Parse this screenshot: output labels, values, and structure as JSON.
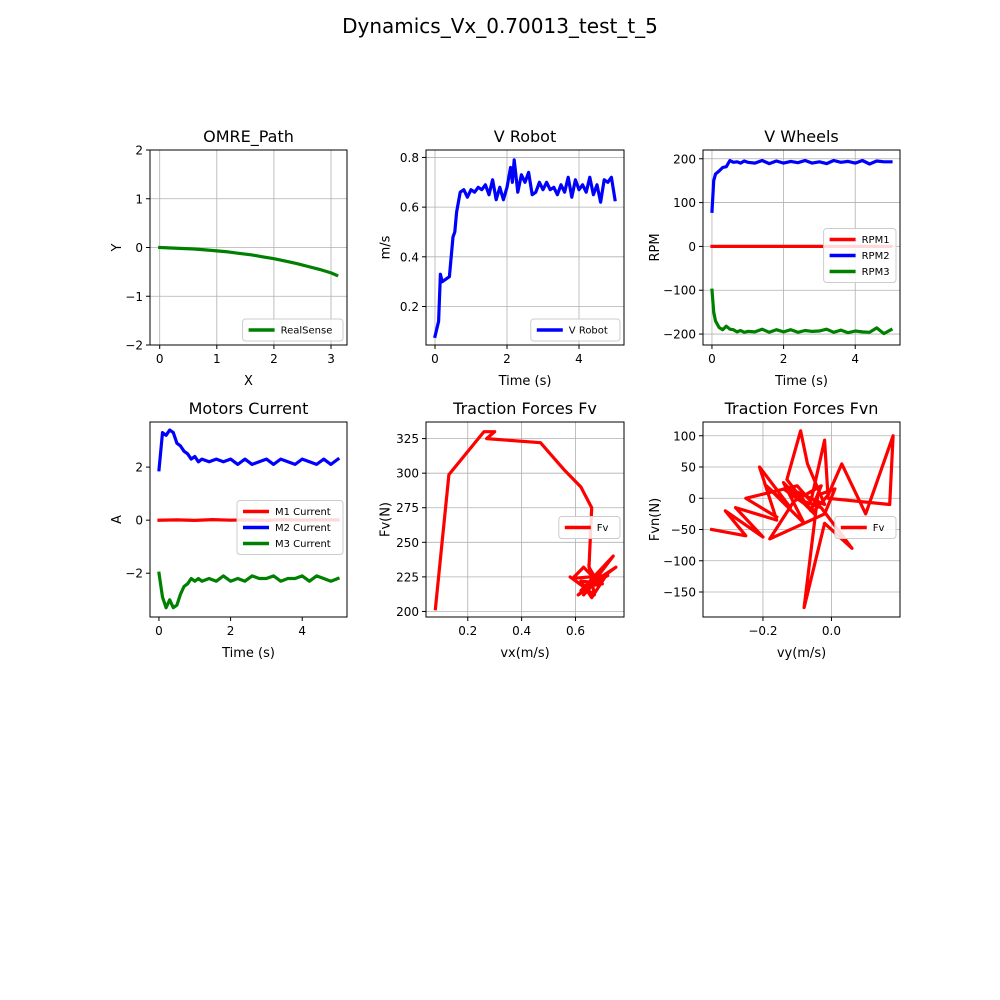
{
  "figure": {
    "title": "Dynamics_Vx_0.70013_test_t_5"
  },
  "chart_data": [
    {
      "id": "omre-path",
      "type": "line",
      "title": "OMRE_Path",
      "xlabel": "X",
      "ylabel": "Y",
      "xlim": [
        -0.17,
        3.28
      ],
      "ylim": [
        -2,
        2
      ],
      "xticks": [
        0,
        1,
        2,
        3
      ],
      "xticklabels": [
        "0",
        "1",
        "2",
        "3"
      ],
      "yticks": [
        -2,
        -1,
        0,
        1,
        2
      ],
      "yticklabels": [
        "−2",
        "−1",
        "0",
        "1",
        "2"
      ],
      "grid": true,
      "legend": "lower right",
      "series": [
        {
          "name": "RealSense",
          "color": "#008000",
          "x": [
            0,
            0.2,
            0.4,
            0.6,
            0.8,
            1.0,
            1.2,
            1.4,
            1.6,
            1.8,
            2.0,
            2.2,
            2.4,
            2.6,
            2.8,
            3.0,
            3.1
          ],
          "y": [
            0,
            -0.01,
            -0.02,
            -0.03,
            -0.05,
            -0.07,
            -0.09,
            -0.12,
            -0.15,
            -0.19,
            -0.23,
            -0.28,
            -0.33,
            -0.39,
            -0.45,
            -0.52,
            -0.57
          ]
        }
      ]
    },
    {
      "id": "v-robot",
      "type": "line",
      "title": "V Robot",
      "xlabel": "Time (s)",
      "ylabel": "m/s",
      "xlim": [
        -0.25,
        5.25
      ],
      "ylim": [
        0.045,
        0.83
      ],
      "xticks": [
        0,
        2,
        4
      ],
      "xticklabels": [
        "0",
        "2",
        "4"
      ],
      "yticks": [
        0.2,
        0.4,
        0.6,
        0.8
      ],
      "yticklabels": [
        "0.2",
        "0.4",
        "0.6",
        "0.8"
      ],
      "grid": true,
      "legend": "lower right",
      "series": [
        {
          "name": "V Robot",
          "color": "#0000ff",
          "x": [
            0,
            0.1,
            0.15,
            0.2,
            0.3,
            0.4,
            0.5,
            0.55,
            0.6,
            0.7,
            0.8,
            0.9,
            1.0,
            1.1,
            1.2,
            1.3,
            1.4,
            1.5,
            1.6,
            1.7,
            1.8,
            1.9,
            2.0,
            2.1,
            2.15,
            2.2,
            2.3,
            2.4,
            2.5,
            2.6,
            2.7,
            2.8,
            2.9,
            3.0,
            3.1,
            3.2,
            3.3,
            3.4,
            3.5,
            3.6,
            3.7,
            3.8,
            3.9,
            4.0,
            4.1,
            4.2,
            4.3,
            4.4,
            4.5,
            4.6,
            4.7,
            4.8,
            4.9,
            5.0
          ],
          "y": [
            0.08,
            0.14,
            0.33,
            0.3,
            0.31,
            0.32,
            0.48,
            0.5,
            0.58,
            0.66,
            0.67,
            0.64,
            0.67,
            0.66,
            0.68,
            0.67,
            0.69,
            0.65,
            0.71,
            0.63,
            0.68,
            0.63,
            0.68,
            0.76,
            0.7,
            0.79,
            0.66,
            0.73,
            0.7,
            0.74,
            0.65,
            0.66,
            0.7,
            0.67,
            0.7,
            0.67,
            0.68,
            0.65,
            0.69,
            0.66,
            0.72,
            0.64,
            0.71,
            0.67,
            0.69,
            0.66,
            0.72,
            0.65,
            0.69,
            0.62,
            0.71,
            0.7,
            0.72,
            0.63
          ]
        }
      ]
    },
    {
      "id": "v-wheels",
      "type": "line",
      "title": "V Wheels",
      "xlabel": "Time (s)",
      "ylabel": "RPM",
      "xlim": [
        -0.25,
        5.25
      ],
      "ylim": [
        -225,
        220
      ],
      "xticks": [
        0,
        2,
        4
      ],
      "xticklabels": [
        "0",
        "2",
        "4"
      ],
      "yticks": [
        -200,
        -100,
        0,
        100,
        200
      ],
      "yticklabels": [
        "−200",
        "−100",
        "0",
        "100",
        "200"
      ],
      "grid": true,
      "legend": "center right",
      "series": [
        {
          "name": "RPM1",
          "color": "#ff0000",
          "x": [
            0,
            5.0
          ],
          "y": [
            0,
            0
          ]
        },
        {
          "name": "RPM2",
          "color": "#0000ff",
          "x": [
            0,
            0.05,
            0.1,
            0.2,
            0.3,
            0.4,
            0.5,
            0.6,
            0.7,
            0.8,
            0.9,
            1.0,
            1.2,
            1.4,
            1.6,
            1.8,
            2.0,
            2.2,
            2.4,
            2.6,
            2.8,
            3.0,
            3.2,
            3.4,
            3.6,
            3.8,
            4.0,
            4.2,
            4.4,
            4.6,
            4.8,
            5.0
          ],
          "y": [
            80,
            150,
            165,
            172,
            180,
            182,
            196,
            192,
            193,
            190,
            195,
            192,
            190,
            196,
            189,
            195,
            190,
            194,
            191,
            196,
            190,
            193,
            189,
            196,
            192,
            194,
            190,
            196,
            188,
            195,
            193,
            193
          ]
        },
        {
          "name": "RPM3",
          "color": "#008000",
          "x": [
            0,
            0.05,
            0.1,
            0.2,
            0.3,
            0.4,
            0.5,
            0.6,
            0.7,
            0.8,
            0.9,
            1.0,
            1.2,
            1.4,
            1.6,
            1.8,
            2.0,
            2.2,
            2.4,
            2.6,
            2.8,
            3.0,
            3.2,
            3.4,
            3.6,
            3.8,
            4.0,
            4.2,
            4.4,
            4.6,
            4.8,
            5.0
          ],
          "y": [
            -100,
            -150,
            -170,
            -185,
            -190,
            -182,
            -189,
            -190,
            -195,
            -192,
            -196,
            -194,
            -195,
            -189,
            -196,
            -190,
            -195,
            -190,
            -196,
            -192,
            -194,
            -193,
            -189,
            -196,
            -191,
            -197,
            -193,
            -195,
            -196,
            -186,
            -199,
            -190
          ]
        }
      ]
    },
    {
      "id": "motors-current",
      "type": "line",
      "title": "Motors Current",
      "xlabel": "Time (s)",
      "ylabel": "A",
      "xlim": [
        -0.25,
        5.25
      ],
      "ylim": [
        -3.65,
        3.7
      ],
      "xticks": [
        0,
        2,
        4
      ],
      "xticklabels": [
        "0",
        "2",
        "4"
      ],
      "yticks": [
        -2,
        0,
        2
      ],
      "yticklabels": [
        "−2",
        "0",
        "2"
      ],
      "grid": false,
      "legend": "center right",
      "series": [
        {
          "name": "M1 Current",
          "color": "#ff0000",
          "x": [
            0,
            0.5,
            1.0,
            1.5,
            2.0,
            2.5,
            3.0,
            3.5,
            4.0,
            4.5,
            5.0
          ],
          "y": [
            0,
            0.01,
            -0.01,
            0.02,
            0,
            0.01,
            -0.01,
            0.02,
            0,
            0.01,
            0.01
          ]
        },
        {
          "name": "M2 Current",
          "color": "#0000ff",
          "x": [
            0,
            0.1,
            0.2,
            0.3,
            0.4,
            0.5,
            0.6,
            0.7,
            0.8,
            0.9,
            1.0,
            1.1,
            1.2,
            1.4,
            1.6,
            1.8,
            2.0,
            2.2,
            2.4,
            2.6,
            2.8,
            3.0,
            3.2,
            3.4,
            3.6,
            3.8,
            4.0,
            4.2,
            4.4,
            4.6,
            4.8,
            5.0
          ],
          "y": [
            1.9,
            3.3,
            3.2,
            3.4,
            3.3,
            2.9,
            2.8,
            2.6,
            2.5,
            2.3,
            2.4,
            2.2,
            2.3,
            2.2,
            2.3,
            2.2,
            2.3,
            2.1,
            2.3,
            2.1,
            2.2,
            2.3,
            2.1,
            2.3,
            2.2,
            2.1,
            2.3,
            2.2,
            2.1,
            2.3,
            2.1,
            2.3
          ]
        },
        {
          "name": "M3 Current",
          "color": "#008000",
          "x": [
            0,
            0.1,
            0.2,
            0.3,
            0.4,
            0.5,
            0.6,
            0.7,
            0.8,
            0.9,
            1.0,
            1.1,
            1.2,
            1.4,
            1.6,
            1.8,
            2.0,
            2.2,
            2.4,
            2.6,
            2.8,
            3.0,
            3.2,
            3.4,
            3.6,
            3.8,
            4.0,
            4.2,
            4.4,
            4.6,
            4.8,
            5.0
          ],
          "y": [
            -2.0,
            -2.9,
            -3.3,
            -3.0,
            -3.3,
            -3.2,
            -2.8,
            -2.5,
            -2.4,
            -2.2,
            -2.3,
            -2.2,
            -2.3,
            -2.2,
            -2.3,
            -2.1,
            -2.3,
            -2.2,
            -2.3,
            -2.1,
            -2.2,
            -2.2,
            -2.1,
            -2.3,
            -2.2,
            -2.2,
            -2.1,
            -2.3,
            -2.1,
            -2.2,
            -2.3,
            -2.2
          ]
        }
      ]
    },
    {
      "id": "traction-fv",
      "type": "line",
      "title": "Traction Forces Fv",
      "xlabel": "vx(m/s)",
      "ylabel": "Fv(N)",
      "xlim": [
        0.045,
        0.78
      ],
      "ylim": [
        196,
        337
      ],
      "xticks": [
        0.2,
        0.4,
        0.6
      ],
      "xticklabels": [
        "0.2",
        "0.4",
        "0.6"
      ],
      "yticks": [
        200,
        225,
        250,
        275,
        300,
        325
      ],
      "yticklabels": [
        "200",
        "225",
        "250",
        "275",
        "300",
        "325"
      ],
      "grid": true,
      "legend": "center right",
      "series": [
        {
          "name": "Fv",
          "color": "#ff0000",
          "x": [
            0.08,
            0.13,
            0.26,
            0.3,
            0.27,
            0.47,
            0.56,
            0.62,
            0.66,
            0.65,
            0.68,
            0.63,
            0.59,
            0.72,
            0.62,
            0.74,
            0.63,
            0.69,
            0.61,
            0.75,
            0.64,
            0.7,
            0.62,
            0.66,
            0.72,
            0.64,
            0.69,
            0.63,
            0.58,
            0.67,
            0.65
          ],
          "y": [
            202,
            299,
            330,
            330,
            325,
            322,
            302,
            290,
            275,
            232,
            222,
            232,
            224,
            226,
            215,
            240,
            212,
            225,
            212,
            232,
            218,
            220,
            222,
            210,
            228,
            215,
            225,
            218,
            225,
            212,
            233
          ]
        }
      ]
    },
    {
      "id": "traction-fvn",
      "type": "line",
      "title": "Traction Forces Fvn",
      "xlabel": "vy(m/s)",
      "ylabel": "Fvn(N)",
      "xlim": [
        -0.375,
        0.2
      ],
      "ylim": [
        -190,
        122
      ],
      "xticks": [
        -0.2,
        0.0
      ],
      "xticklabels": [
        "−0.2",
        "0.0"
      ],
      "yticks": [
        -150,
        -100,
        -50,
        0,
        50,
        100
      ],
      "yticklabels": [
        "−150",
        "−100",
        "−50",
        "0",
        "50",
        "100"
      ],
      "grid": true,
      "legend": "center right",
      "series": [
        {
          "name": "Fv",
          "color": "#ff0000",
          "x": [
            -0.35,
            -0.25,
            -0.31,
            -0.2,
            -0.28,
            -0.16,
            -0.21,
            -0.12,
            -0.19,
            -0.08,
            -0.14,
            -0.05,
            -0.1,
            -0.02,
            -0.07,
            -0.09,
            -0.13,
            -0.06,
            -0.03,
            -0.11,
            -0.18,
            -0.08,
            -0.02,
            0.01,
            -0.04,
            -0.08,
            -0.02,
            0.06,
            -0.03,
            -0.08,
            -0.14,
            -0.05,
            -0.01,
            0.03,
            0.1,
            0.18,
            0.17,
            -0.01,
            -0.02,
            -0.06,
            -0.1,
            -0.25,
            -0.16
          ],
          "y": [
            -50,
            -60,
            -20,
            -62,
            -15,
            -35,
            50,
            -15,
            20,
            -40,
            25,
            -25,
            10,
            -10,
            55,
            108,
            30,
            -20,
            20,
            -5,
            -65,
            -40,
            -25,
            15,
            5,
            -175,
            -40,
            -80,
            -15,
            -5,
            15,
            -20,
            5,
            55,
            -25,
            100,
            -10,
            0,
            93,
            -5,
            20,
            0,
            -30
          ]
        }
      ]
    }
  ]
}
